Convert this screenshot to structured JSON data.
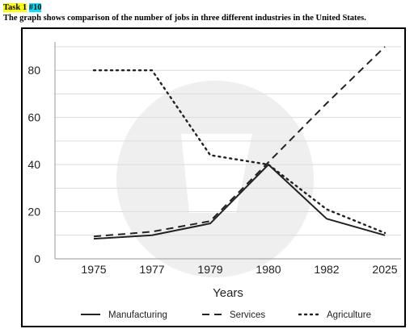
{
  "header": {
    "task_label": "Task 1",
    "task_number": "#10",
    "description": "The graph shows comparison of the number of jobs in three different industries in the United States."
  },
  "chart_data": {
    "type": "line",
    "categories": [
      "1975",
      "1977",
      "1979",
      "1980",
      "1982",
      "2025"
    ],
    "series": [
      {
        "name": "Manufacturing",
        "values": [
          8.5,
          10,
          15,
          40,
          17,
          10
        ],
        "style": "solid"
      },
      {
        "name": "Services",
        "values": [
          9.5,
          11.5,
          16,
          41,
          66,
          90
        ],
        "style": "dashed"
      },
      {
        "name": "Agriculture",
        "values": [
          80,
          80,
          44,
          40,
          21,
          11
        ],
        "style": "dotted"
      }
    ],
    "yticks": [
      0,
      20,
      40,
      60,
      80
    ],
    "ylim": [
      0,
      90
    ],
    "xlabel": "Years",
    "ylabel": "",
    "grid": true,
    "legend_position": "bottom",
    "colors": {
      "line": "#222222",
      "grid": "#dcdcdc",
      "watermark": "#efefef"
    }
  }
}
